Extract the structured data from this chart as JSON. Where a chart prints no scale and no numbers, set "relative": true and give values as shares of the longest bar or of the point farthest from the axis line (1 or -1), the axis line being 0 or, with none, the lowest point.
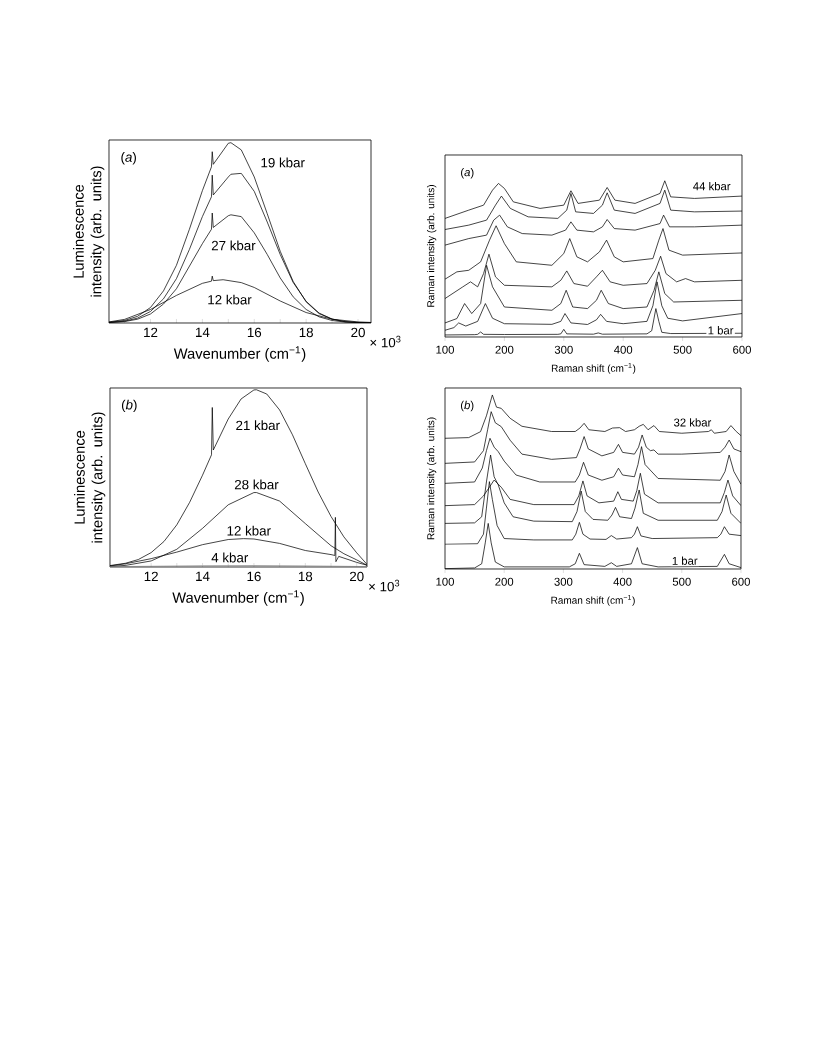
{
  "chart_data": [
    {
      "type": "line",
      "relative": true,
      "tick_labels": "x",
      "xlabel": "Wavenumber (cm$^{−1}$)",
      "ylabel": "Luminescence intensity (arb. units)",
      "xlim": [
        10.4,
        20.5
      ],
      "xticks": [
        {
          "value": 11,
          "label": null
        },
        12,
        {
          "value": 13,
          "label": null
        },
        14,
        {
          "value": 15,
          "label": null
        },
        16,
        {
          "value": 17,
          "label": null
        },
        18,
        {
          "value": 19,
          "label": null
        },
        20
      ],
      "annotations": [
        "(*a*)",
        "× 10$^{3}$"
      ],
      "series": [
        {
          "name": "19 kbar",
          "color": "#000000",
          "x": [
            10.4,
            11,
            11.5,
            12,
            12.5,
            13,
            13.5,
            14,
            14.35,
            14.38,
            14.42,
            15,
            15.1,
            15.5,
            16,
            16.5,
            17,
            17.5,
            18,
            18.5,
            19,
            19.5,
            20,
            20.5
          ],
          "values": [
            0.004,
            0.014,
            0.037,
            0.086,
            0.178,
            0.32,
            0.52,
            0.734,
            0.866,
            0.95,
            0.88,
            0.997,
            1.0,
            0.96,
            0.81,
            0.606,
            0.398,
            0.23,
            0.117,
            0.052,
            0.021,
            0.007,
            0.002,
            0.001
          ]
        },
        {
          "color": "#000000",
          "x": [
            10.4,
            11,
            11.5,
            12,
            12.5,
            13,
            13.5,
            14,
            14.35,
            14.38,
            14.42,
            15,
            15.1,
            15.5,
            16,
            16.5,
            17,
            17.5,
            18,
            18.5,
            19,
            19.5,
            20,
            20.5
          ],
          "values": [
            0.003,
            0.01,
            0.027,
            0.064,
            0.134,
            0.246,
            0.408,
            0.59,
            0.7,
            0.82,
            0.71,
            0.81,
            0.825,
            0.83,
            0.73,
            0.56,
            0.38,
            0.225,
            0.12,
            0.055,
            0.022,
            0.008,
            0.003,
            0.001
          ]
        },
        {
          "name": "27 kbar",
          "color": "#000000",
          "x": [
            10.4,
            11,
            11.5,
            12,
            12.5,
            13,
            13.5,
            14,
            14.35,
            14.38,
            14.42,
            15,
            15.1,
            15.5,
            16,
            16.5,
            17,
            17.5,
            18,
            18.5,
            19,
            19.5,
            20,
            20.5
          ],
          "values": [
            0.002,
            0.008,
            0.021,
            0.05,
            0.105,
            0.19,
            0.315,
            0.44,
            0.52,
            0.61,
            0.53,
            0.595,
            0.6,
            0.59,
            0.5,
            0.38,
            0.25,
            0.145,
            0.075,
            0.034,
            0.014,
            0.005,
            0.002,
            0.001
          ]
        },
        {
          "name": "12 kbar",
          "color": "#000000",
          "x": [
            10.4,
            11,
            12,
            13,
            14,
            14.35,
            14.38,
            14.42,
            14.8,
            15.5,
            16,
            17,
            18,
            19,
            20,
            20.5
          ],
          "values": [
            0.006,
            0.02,
            0.075,
            0.153,
            0.22,
            0.232,
            0.26,
            0.235,
            0.24,
            0.224,
            0.197,
            0.122,
            0.058,
            0.021,
            0.006,
            0.003
          ]
        }
      ]
    },
    {
      "type": "line",
      "relative": true,
      "tick_labels": "x",
      "xlabel": "Raman shift (cm$^{−1}$)",
      "ylabel": "Raman intensity (arb. units)",
      "xlim": [
        100,
        600
      ],
      "xticks": [
        100,
        200,
        300,
        400,
        500,
        600
      ],
      "annotations": [
        "(*a*)"
      ],
      "series": [
        {
          "name": "44 kbar",
          "color": "#000000",
          "x": [
            100,
            140,
            165,
            180,
            190,
            200,
            215,
            260,
            300,
            312,
            324,
            360,
            373,
            386,
            420,
            462,
            470,
            480,
            520,
            600
          ],
          "values": [
            0.759,
            0.812,
            0.844,
            0.94,
            0.983,
            0.951,
            0.865,
            0.823,
            0.844,
            0.936,
            0.855,
            0.876,
            0.957,
            0.876,
            0.855,
            0.919,
            1.0,
            0.897,
            0.887,
            0.902
          ]
        },
        {
          "color": "#000000",
          "x": [
            100,
            140,
            170,
            185,
            195,
            210,
            240,
            290,
            305,
            312,
            320,
            350,
            365,
            373,
            385,
            420,
            462,
            470,
            480,
            520,
            600
          ],
          "values": [
            0.688,
            0.716,
            0.748,
            0.844,
            0.902,
            0.823,
            0.769,
            0.759,
            0.812,
            0.919,
            0.801,
            0.791,
            0.844,
            0.923,
            0.812,
            0.791,
            0.855,
            0.94,
            0.812,
            0.801,
            0.806
          ]
        },
        {
          "color": "#000000",
          "x": [
            100,
            140,
            170,
            182,
            192,
            205,
            230,
            280,
            303,
            312,
            322,
            350,
            365,
            373,
            385,
            420,
            462,
            468,
            478,
            520,
            600
          ],
          "values": [
            0.588,
            0.63,
            0.652,
            0.748,
            0.78,
            0.705,
            0.662,
            0.652,
            0.684,
            0.737,
            0.684,
            0.673,
            0.705,
            0.752,
            0.694,
            0.684,
            0.726,
            0.78,
            0.705,
            0.705,
            0.716
          ]
        },
        {
          "color": "#000000",
          "x": [
            100,
            120,
            140,
            160,
            175,
            186,
            200,
            220,
            280,
            300,
            310,
            322,
            340,
            360,
            372,
            385,
            400,
            450,
            460,
            467,
            477,
            500,
            600
          ],
          "values": [
            0.37,
            0.417,
            0.427,
            0.481,
            0.62,
            0.712,
            0.598,
            0.481,
            0.459,
            0.534,
            0.63,
            0.513,
            0.481,
            0.545,
            0.62,
            0.513,
            0.481,
            0.502,
            0.62,
            0.694,
            0.556,
            0.524,
            0.538
          ]
        },
        {
          "color": "#000000",
          "x": [
            100,
            130,
            143,
            155,
            165,
            174,
            185,
            200,
            280,
            295,
            305,
            317,
            340,
            355,
            365,
            378,
            400,
            440,
            454,
            463,
            472,
            490,
            505,
            520,
            600
          ],
          "values": [
            0.246,
            0.321,
            0.353,
            0.321,
            0.406,
            0.53,
            0.385,
            0.331,
            0.321,
            0.363,
            0.423,
            0.342,
            0.325,
            0.385,
            0.427,
            0.353,
            0.331,
            0.342,
            0.427,
            0.517,
            0.406,
            0.353,
            0.374,
            0.353,
            0.363
          ]
        },
        {
          "color": "#000000",
          "x": [
            100,
            120,
            133,
            145,
            160,
            170,
            180,
            200,
            280,
            295,
            304,
            315,
            340,
            355,
            363,
            375,
            400,
            440,
            452,
            460,
            470,
            485,
            600
          ],
          "values": [
            0.09,
            0.118,
            0.214,
            0.15,
            0.214,
            0.459,
            0.321,
            0.192,
            0.171,
            0.214,
            0.299,
            0.192,
            0.182,
            0.235,
            0.299,
            0.214,
            0.182,
            0.192,
            0.299,
            0.417,
            0.278,
            0.224,
            0.235
          ]
        },
        {
          "color": "#000000",
          "x": [
            100,
            115,
            123,
            135,
            155,
            168,
            180,
            200,
            280,
            295,
            302,
            312,
            340,
            355,
            362,
            372,
            400,
            440,
            450,
            457,
            465,
            475,
            500,
            600
          ],
          "values": [
            0.043,
            0.06,
            0.09,
            0.07,
            0.1,
            0.214,
            0.12,
            0.085,
            0.081,
            0.1,
            0.15,
            0.09,
            0.08,
            0.11,
            0.145,
            0.1,
            0.085,
            0.1,
            0.2,
            0.353,
            0.2,
            0.12,
            0.103,
            0.15
          ]
        },
        {
          "name": "1 bar",
          "color": "#000000",
          "x": [
            100,
            150,
            155,
            160,
            165,
            200,
            290,
            295,
            300,
            305,
            350,
            358,
            365,
            440,
            448,
            455,
            460,
            465,
            480,
            600
          ],
          "values": [
            0.013,
            0.015,
            0.017,
            0.032,
            0.017,
            0.016,
            0.017,
            0.02,
            0.049,
            0.02,
            0.018,
            0.026,
            0.018,
            0.02,
            0.04,
            0.182,
            0.1,
            0.03,
            0.022,
            0.024
          ]
        }
      ]
    },
    {
      "type": "line",
      "relative": true,
      "tick_labels": "x",
      "xlabel": "Wavenumber (cm$^{−1}$)",
      "ylabel": "Luminescence intensity (arb. units)",
      "xlim": [
        10.4,
        20.4
      ],
      "xticks": [
        {
          "value": 11,
          "label": null
        },
        12,
        {
          "value": 13,
          "label": null
        },
        14,
        {
          "value": 15,
          "label": null
        },
        16,
        {
          "value": 17,
          "label": null
        },
        18,
        {
          "value": 19,
          "label": null
        },
        20
      ],
      "annotations": [
        "(*b*)",
        "× 10$^{3}$"
      ],
      "series": [
        {
          "name": "21 kbar",
          "color": "#000000",
          "x": [
            10.4,
            11,
            11.5,
            12,
            12.5,
            13,
            13.5,
            14,
            14.35,
            14.38,
            14.42,
            15,
            15.5,
            16,
            16.1,
            16.5,
            17,
            17.5,
            18,
            18.5,
            19,
            19.5,
            20,
            20.4
          ],
          "values": [
            0.008,
            0.021,
            0.042,
            0.081,
            0.144,
            0.238,
            0.365,
            0.518,
            0.633,
            0.9,
            0.66,
            0.835,
            0.948,
            0.999,
            1.0,
            0.976,
            0.886,
            0.746,
            0.583,
            0.423,
            0.285,
            0.17,
            0.08,
            0.015
          ]
        },
        {
          "name": "28 kbar",
          "color": "#000000",
          "x": [
            10.4,
            11,
            12,
            13,
            14,
            15,
            16,
            16.1,
            17,
            18,
            19,
            19.5,
            20,
            20.4
          ],
          "values": [
            0.003,
            0.009,
            0.034,
            0.1,
            0.218,
            0.351,
            0.42,
            0.42,
            0.372,
            0.245,
            0.12,
            0.075,
            0.04,
            0.01
          ]
        },
        {
          "name": "12 kbar",
          "color": "#000000",
          "x": [
            10.4,
            11,
            12,
            13,
            14,
            15,
            15.6,
            16,
            17,
            18,
            19,
            19.15,
            19.17,
            19.19,
            19.3,
            20,
            20.4
          ],
          "values": [
            0.006,
            0.018,
            0.047,
            0.084,
            0.126,
            0.155,
            0.16,
            0.158,
            0.133,
            0.093,
            0.07,
            0.065,
            0.28,
            0.03,
            0.06,
            0.026,
            0.01
          ]
        },
        {
          "name": "4 kbar",
          "color": "#808080",
          "x": [
            10.4,
            12,
            14,
            16,
            18,
            20,
            20.4
          ],
          "values": [
            0.002,
            0.004,
            0.007,
            0.008,
            0.006,
            0.003,
            0.002
          ]
        }
      ]
    },
    {
      "type": "line",
      "relative": true,
      "tick_labels": "x",
      "xlabel": "Raman shift (cm$^{−1}$)",
      "ylabel": "Raman intensity (arb. units)",
      "xlim": [
        100,
        600
      ],
      "xticks": [
        100,
        200,
        300,
        400,
        500,
        600
      ],
      "annotations": [
        "(*b*)"
      ],
      "series": [
        {
          "name": "32 kbar",
          "color": "#000000",
          "x": [
            100,
            140,
            160,
            170,
            180,
            187,
            195,
            210,
            230,
            280,
            320,
            328,
            335,
            343,
            370,
            383,
            395,
            405,
            420,
            428,
            435,
            443,
            453,
            462,
            500,
            545,
            550,
            555,
            575,
            583,
            592,
            600
          ],
          "values": [
            0.751,
            0.755,
            0.789,
            0.88,
            1.0,
            0.93,
            0.923,
            0.866,
            0.82,
            0.79,
            0.79,
            0.81,
            0.837,
            0.8,
            0.79,
            0.81,
            0.812,
            0.79,
            0.8,
            0.82,
            0.831,
            0.8,
            0.824,
            0.79,
            0.78,
            0.79,
            0.8,
            0.78,
            0.79,
            0.824,
            0.79,
            0.766
          ]
        },
        {
          "color": "#000000",
          "x": [
            100,
            150,
            165,
            172,
            178,
            185,
            195,
            210,
            230,
            280,
            322,
            328,
            335,
            342,
            365,
            385,
            393,
            400,
            420,
            427,
            433,
            440,
            447,
            453,
            460,
            500,
            565,
            573,
            580,
            588,
            600
          ],
          "values": [
            0.607,
            0.615,
            0.68,
            0.8,
            0.904,
            0.84,
            0.818,
            0.74,
            0.66,
            0.63,
            0.64,
            0.69,
            0.761,
            0.69,
            0.65,
            0.67,
            0.716,
            0.67,
            0.66,
            0.7,
            0.77,
            0.7,
            0.68,
            0.684,
            0.66,
            0.66,
            0.67,
            0.7,
            0.741,
            0.69,
            0.674
          ]
        },
        {
          "color": "#000000",
          "x": [
            100,
            150,
            163,
            170,
            176,
            183,
            190,
            200,
            220,
            260,
            320,
            327,
            334,
            342,
            365,
            385,
            393,
            400,
            420,
            426,
            432,
            438,
            460,
            565,
            573,
            580,
            588,
            600
          ],
          "values": [
            0.492,
            0.5,
            0.58,
            0.68,
            0.751,
            0.7,
            0.674,
            0.62,
            0.54,
            0.5,
            0.5,
            0.54,
            0.613,
            0.54,
            0.51,
            0.53,
            0.579,
            0.54,
            0.53,
            0.6,
            0.703,
            0.6,
            0.52,
            0.51,
            0.56,
            0.655,
            0.56,
            0.487
          ]
        },
        {
          "color": "#000000",
          "x": [
            100,
            150,
            165,
            175,
            183,
            195,
            210,
            250,
            318,
            326,
            333,
            340,
            360,
            385,
            392,
            398,
            418,
            424,
            430,
            437,
            460,
            565,
            572,
            578,
            586,
            600
          ],
          "values": [
            0.364,
            0.37,
            0.42,
            0.47,
            0.511,
            0.47,
            0.4,
            0.37,
            0.37,
            0.42,
            0.506,
            0.42,
            0.38,
            0.39,
            0.444,
            0.4,
            0.39,
            0.45,
            0.55,
            0.43,
            0.38,
            0.38,
            0.44,
            0.511,
            0.42,
            0.364
          ]
        },
        {
          "color": "#000000",
          "x": [
            100,
            150,
            162,
            170,
            177,
            183,
            190,
            200,
            215,
            250,
            315,
            323,
            330,
            337,
            350,
            375,
            382,
            388,
            395,
            415,
            421,
            428,
            435,
            460,
            560,
            568,
            575,
            583,
            600
          ],
          "values": [
            0.262,
            0.265,
            0.3,
            0.5,
            0.655,
            0.53,
            0.483,
            0.38,
            0.3,
            0.275,
            0.272,
            0.33,
            0.448,
            0.33,
            0.285,
            0.28,
            0.31,
            0.354,
            0.3,
            0.29,
            0.35,
            0.454,
            0.32,
            0.28,
            0.28,
            0.33,
            0.425,
            0.32,
            0.262
          ]
        },
        {
          "color": "#000000",
          "x": [
            100,
            155,
            165,
            170,
            175,
            180,
            188,
            200,
            250,
            315,
            321,
            327,
            333,
            345,
            372,
            381,
            390,
            415,
            420,
            425,
            431,
            450,
            560,
            566,
            572,
            580,
            600
          ],
          "values": [
            0.142,
            0.145,
            0.2,
            0.35,
            0.502,
            0.4,
            0.25,
            0.175,
            0.167,
            0.167,
            0.2,
            0.268,
            0.2,
            0.172,
            0.17,
            0.192,
            0.172,
            0.18,
            0.2,
            0.243,
            0.19,
            0.175,
            0.18,
            0.2,
            0.243,
            0.2,
            0.192
          ]
        },
        {
          "name": "1 bar",
          "color": "#000000",
          "x": [
            100,
            150,
            162,
            168,
            173,
            178,
            185,
            200,
            310,
            320,
            327,
            335,
            370,
            381,
            390,
            415,
            425,
            433,
            460,
            560,
            572,
            580,
            600
          ],
          "values": [
            0.002,
            0.006,
            0.03,
            0.15,
            0.262,
            0.15,
            0.04,
            0.012,
            0.012,
            0.03,
            0.09,
            0.025,
            0.015,
            0.036,
            0.015,
            0.03,
            0.123,
            0.03,
            0.012,
            0.015,
            0.084,
            0.03,
            0.008
          ]
        }
      ]
    }
  ]
}
